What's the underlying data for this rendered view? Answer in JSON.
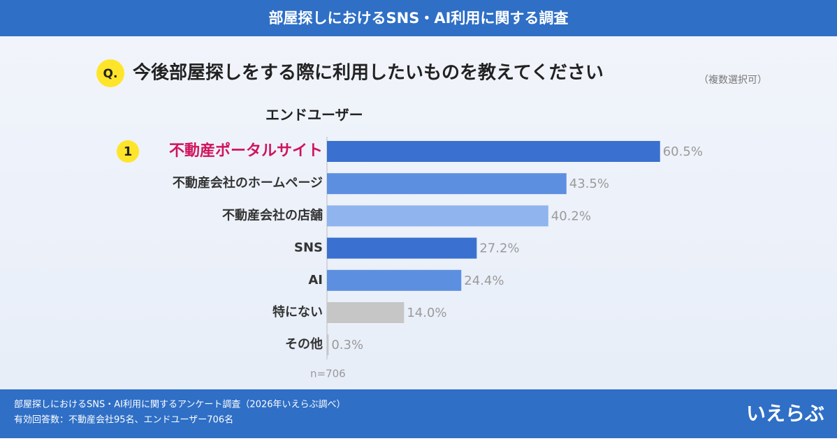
{
  "header": {
    "title": "部屋探しにおけるSNS・AI利用に関する調査"
  },
  "chart_data": {
    "type": "bar",
    "orientation": "horizontal",
    "question_marker": "Q.",
    "title": "今後部屋探しをする際に利用したいものを教えてください",
    "title_note": "（複数選択可）",
    "subtitle": "エンドユーザー",
    "rank_label": "1",
    "highlight_color": "#d0145c",
    "categories": [
      "不動産ポータルサイト",
      "不動産会社のホームページ",
      "不動産会社の店舗",
      "SNS",
      "AI",
      "特にない",
      "その他"
    ],
    "values": [
      60.5,
      43.5,
      40.2,
      27.2,
      24.4,
      14.0,
      0.3
    ],
    "value_labels": [
      "60.5%",
      "43.5%",
      "40.2%",
      "27.2%",
      "24.4%",
      "14.0%",
      "0.3%"
    ],
    "colors": [
      "#3a70cf",
      "#5d8fe0",
      "#8fb4ee",
      "#3a70cf",
      "#5d8fe0",
      "#c6c6c6",
      "#c6c6c6"
    ],
    "note": "n=706"
  },
  "footer": {
    "lines": [
      "部屋探しにおけるSNS・AI利用に関するアンケート調査（2026年いえらぶ調べ）",
      "有効回答数：不動産会社95名、エンドユーザー706名"
    ],
    "logo": "いえらぶ"
  }
}
